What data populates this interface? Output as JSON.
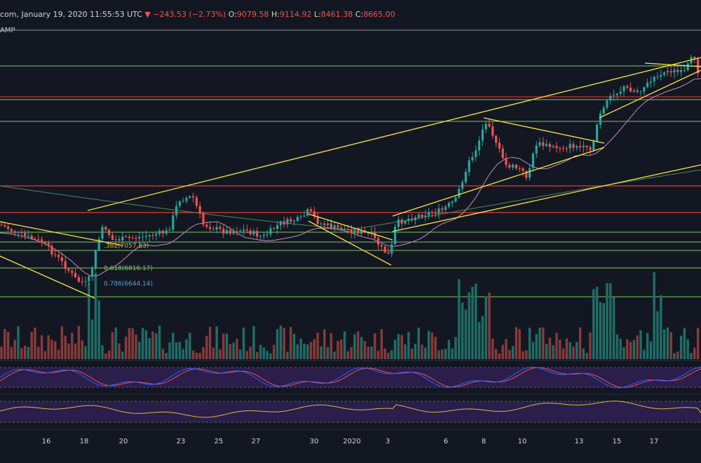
{
  "header": {
    "source_fragment": "com, January 19, 2020 11:55:53 UTC",
    "change_arrow": "▼",
    "change_text": "−243.53 (−2.73%)",
    "o_label": "O:",
    "o_value": "9079.58",
    "h_label": "H:",
    "h_value": "9114.92",
    "l_label": "L:",
    "l_value": "8461.38",
    "c_label": "C:",
    "c_value": "8665.00",
    "indicator_fragment": "AMP"
  },
  "chart_data": {
    "type": "candlestick",
    "x_tick_labels": [
      "16",
      "18",
      "20",
      "23",
      "25",
      "27",
      "30",
      "2020",
      "3",
      "6",
      "8",
      "10",
      "13",
      "15",
      "17"
    ],
    "fib_levels": [
      {
        "label": ".382(7057.83)",
        "price": 7057.83
      },
      {
        "label": "0.618(6816.17)",
        "price": 6816.17
      },
      {
        "label": "0.786(6644.14)",
        "price": 6644.14
      }
    ],
    "last_ohlc": {
      "open": 9079.58,
      "high": 9114.92,
      "low": 8461.38,
      "close": 8665.0
    },
    "colors": {
      "up": "#26a69a",
      "down": "#ef5350",
      "trendline": "#f5e642",
      "support": "#7ec46a",
      "resistance": "#e53935",
      "ma_short": "#c48bb8",
      "ma_long": "#4c8a5a",
      "stoch_k": "#2962ff",
      "stoch_d": "#ef5350",
      "rsi": "#d4b94a",
      "osc_band": "#2b1e4a"
    }
  }
}
